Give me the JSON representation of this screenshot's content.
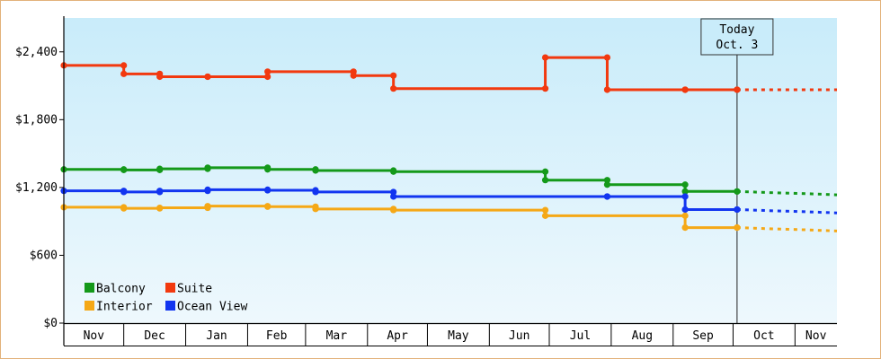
{
  "chart_data": {
    "type": "line",
    "step": true,
    "title": "",
    "xlabel": "",
    "ylabel": "",
    "ylim": [
      0,
      2700
    ],
    "xlim": [
      "2023-11-01",
      "2024-11-22"
    ],
    "y_ticks": [
      {
        "value": 0,
        "label": "$0"
      },
      {
        "value": 600,
        "label": "$600"
      },
      {
        "value": 1200,
        "label": "$1,200"
      },
      {
        "value": 1800,
        "label": "$1,800"
      },
      {
        "value": 2400,
        "label": "$2,400"
      }
    ],
    "month_ticks": [
      {
        "label": "Nov",
        "start": "2023-11-01",
        "end": "2023-12-01"
      },
      {
        "label": "Dec",
        "start": "2023-12-01",
        "end": "2024-01-01"
      },
      {
        "label": "Jan",
        "start": "2024-01-01",
        "end": "2024-02-01"
      },
      {
        "label": "Feb",
        "start": "2024-02-01",
        "end": "2024-03-01"
      },
      {
        "label": "Mar",
        "start": "2024-03-01",
        "end": "2024-04-01"
      },
      {
        "label": "Apr",
        "start": "2024-04-01",
        "end": "2024-05-01"
      },
      {
        "label": "May",
        "start": "2024-05-01",
        "end": "2024-06-01"
      },
      {
        "label": "Jun",
        "start": "2024-06-01",
        "end": "2024-07-01"
      },
      {
        "label": "Jul",
        "start": "2024-07-01",
        "end": "2024-08-01"
      },
      {
        "label": "Aug",
        "start": "2024-08-01",
        "end": "2024-09-01"
      },
      {
        "label": "Sep",
        "start": "2024-09-01",
        "end": "2024-10-01"
      },
      {
        "label": "Oct",
        "start": "2024-10-01",
        "end": "2024-11-01"
      },
      {
        "label": "Nov",
        "start": "2024-11-01",
        "end": "2024-11-22"
      }
    ],
    "today": {
      "date": "2024-10-03",
      "line1": "Today",
      "line2": "Oct. 3"
    },
    "legend_position": "bottom-left",
    "grid": false,
    "background": {
      "top": "#c9ecfa",
      "bottom": "#eef8fd"
    },
    "series": [
      {
        "name": "Balcony",
        "color": "#14991a",
        "points": [
          {
            "x": "2023-11-01",
            "y": 1360
          },
          {
            "x": "2023-12-01",
            "y": 1355
          },
          {
            "x": "2023-12-19",
            "y": 1365
          },
          {
            "x": "2024-01-12",
            "y": 1375
          },
          {
            "x": "2024-02-11",
            "y": 1360
          },
          {
            "x": "2024-03-06",
            "y": 1350
          },
          {
            "x": "2024-04-14",
            "y": 1340
          },
          {
            "x": "2024-06-29",
            "y": 1265
          },
          {
            "x": "2024-07-30",
            "y": 1225
          },
          {
            "x": "2024-09-07",
            "y": 1165
          },
          {
            "x": "2024-10-03",
            "y": 1165
          }
        ],
        "forecast": [
          {
            "x": "2024-10-03",
            "y": 1165
          },
          {
            "x": "2024-10-19",
            "y": 1155
          },
          {
            "x": "2024-11-07",
            "y": 1145
          },
          {
            "x": "2024-11-22",
            "y": 1135
          }
        ]
      },
      {
        "name": "Suite",
        "color": "#f2390f",
        "points": [
          {
            "x": "2023-11-01",
            "y": 2280
          },
          {
            "x": "2023-12-01",
            "y": 2205
          },
          {
            "x": "2023-12-19",
            "y": 2180
          },
          {
            "x": "2024-01-12",
            "y": 2180
          },
          {
            "x": "2024-02-11",
            "y": 2225
          },
          {
            "x": "2024-03-25",
            "y": 2190
          },
          {
            "x": "2024-04-14",
            "y": 2075
          },
          {
            "x": "2024-06-29",
            "y": 2350
          },
          {
            "x": "2024-07-30",
            "y": 2065
          },
          {
            "x": "2024-09-07",
            "y": 2065
          },
          {
            "x": "2024-10-03",
            "y": 2065
          }
        ],
        "forecast": [
          {
            "x": "2024-10-03",
            "y": 2065
          },
          {
            "x": "2024-11-22",
            "y": 2065
          }
        ]
      },
      {
        "name": "Interior",
        "color": "#f5a816",
        "points": [
          {
            "x": "2023-11-01",
            "y": 1025
          },
          {
            "x": "2023-12-01",
            "y": 1015
          },
          {
            "x": "2023-12-19",
            "y": 1020
          },
          {
            "x": "2024-01-12",
            "y": 1035
          },
          {
            "x": "2024-02-11",
            "y": 1030
          },
          {
            "x": "2024-03-06",
            "y": 1010
          },
          {
            "x": "2024-04-14",
            "y": 1000
          },
          {
            "x": "2024-06-29",
            "y": 950
          },
          {
            "x": "2024-09-07",
            "y": 845
          },
          {
            "x": "2024-10-03",
            "y": 845
          }
        ],
        "forecast": [
          {
            "x": "2024-10-03",
            "y": 845
          },
          {
            "x": "2024-10-19",
            "y": 835
          },
          {
            "x": "2024-11-07",
            "y": 825
          },
          {
            "x": "2024-11-22",
            "y": 815
          }
        ]
      },
      {
        "name": "Ocean View",
        "color": "#1235f0",
        "points": [
          {
            "x": "2023-11-01",
            "y": 1170
          },
          {
            "x": "2023-12-01",
            "y": 1160
          },
          {
            "x": "2023-12-19",
            "y": 1170
          },
          {
            "x": "2024-01-12",
            "y": 1180
          },
          {
            "x": "2024-02-11",
            "y": 1175
          },
          {
            "x": "2024-03-06",
            "y": 1160
          },
          {
            "x": "2024-04-14",
            "y": 1120
          },
          {
            "x": "2024-07-30",
            "y": 1120
          },
          {
            "x": "2024-09-07",
            "y": 1005
          },
          {
            "x": "2024-10-03",
            "y": 1005
          }
        ],
        "forecast": [
          {
            "x": "2024-10-03",
            "y": 1005
          },
          {
            "x": "2024-10-19",
            "y": 995
          },
          {
            "x": "2024-11-07",
            "y": 985
          },
          {
            "x": "2024-11-22",
            "y": 975
          }
        ]
      }
    ]
  }
}
